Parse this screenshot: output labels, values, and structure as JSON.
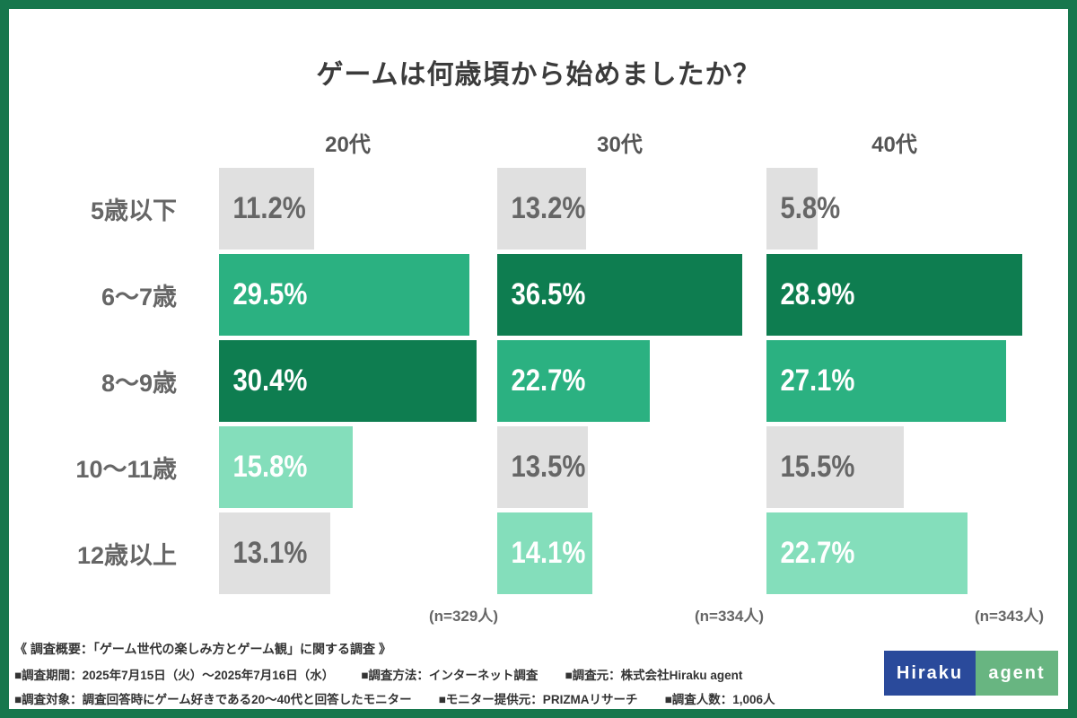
{
  "title": "ゲームは何歳頃から始めましたか？",
  "chart_data": {
    "type": "bar",
    "orientation": "horizontal",
    "categories": [
      "5歳以下",
      "6〜7歳",
      "8〜9歳",
      "10〜11歳",
      "12歳以上"
    ],
    "unit": "%",
    "groups": [
      {
        "label": "20代",
        "n_label": "(n=329人)",
        "values": [
          11.2,
          29.5,
          30.4,
          15.8,
          13.1
        ]
      },
      {
        "label": "30代",
        "n_label": "(n=334人)",
        "values": [
          13.2,
          36.5,
          22.7,
          13.5,
          14.1
        ]
      },
      {
        "label": "40代",
        "n_label": "(n=343人)",
        "values": [
          5.8,
          28.9,
          27.1,
          15.5,
          22.7
        ]
      }
    ],
    "rank_colors": {
      "first": "#0e7d50",
      "second": "#2bb181",
      "third": "#84debb",
      "other": "#e0e0e0"
    },
    "label_color_on_color": "#ffffff",
    "label_color_on_gray": "#666666",
    "legend": "top3 per group colored by rank"
  },
  "footer": {
    "overview": "《 調査概要：「ゲーム世代の楽しみ方とゲーム観」に関する調査 》",
    "lines": [
      [
        "■調査期間：2025年7月15日（火）〜2025年7月16日（水）",
        "■調査方法：インターネット調査",
        "■調査元：株式会社Hiraku agent"
      ],
      [
        "■調査対象：調査回答時にゲーム好きである20〜40代と回答したモニター",
        "■モニター提供元：PRIZMAリサーチ",
        "■調査人数：1,006人"
      ]
    ]
  },
  "logo": {
    "left_text": "Hiraku",
    "right_text": "agent",
    "left_bg": "#2a4a9b",
    "right_bg": "#68b581"
  },
  "frame_color": "#17774d"
}
